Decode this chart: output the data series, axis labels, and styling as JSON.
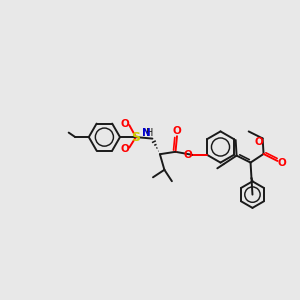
{
  "bg_color": "#e8e8e8",
  "bond_color": "#1a1a1a",
  "red": "#ff0000",
  "blue": "#0000cc",
  "sulfur_color": "#cccc00",
  "lw": 1.4,
  "xlim": [
    0,
    10
  ],
  "ylim": [
    1,
    7
  ]
}
